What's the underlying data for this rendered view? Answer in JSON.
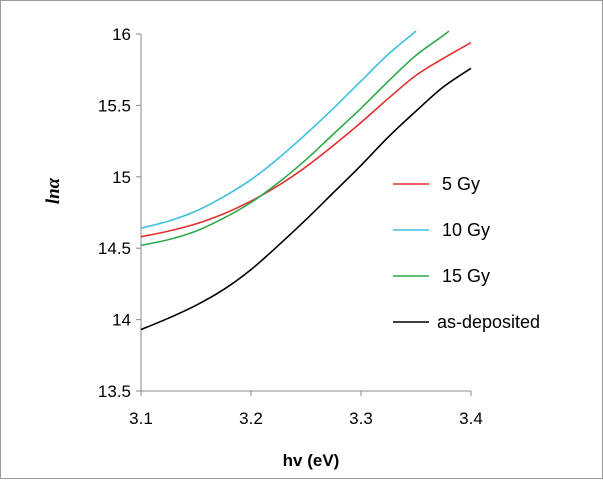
{
  "chart_data": {
    "type": "line",
    "title": "",
    "xlabel": "hv (eV)",
    "ylabel": "lnα",
    "xlim": [
      3.1,
      3.4
    ],
    "ylim": [
      13.5,
      16
    ],
    "x_ticks": [
      "3.1",
      "3.2",
      "3.3",
      "3.4"
    ],
    "y_ticks": [
      "13.5",
      "14",
      "14.5",
      "15",
      "15.5",
      "16"
    ],
    "grid": false,
    "legend_position": "right",
    "series": [
      {
        "name": " 5 Gy",
        "color": "#e03030",
        "x": [
          3.1,
          3.125,
          3.15,
          3.175,
          3.2,
          3.225,
          3.25,
          3.275,
          3.3,
          3.325,
          3.35,
          3.375,
          3.4
        ],
        "values": [
          14.58,
          14.62,
          14.67,
          14.74,
          14.83,
          14.94,
          15.07,
          15.22,
          15.38,
          15.55,
          15.71,
          15.83,
          15.94
        ]
      },
      {
        "name": " 10 Gy",
        "color": "#3ec0e0",
        "x": [
          3.1,
          3.125,
          3.15,
          3.175,
          3.2,
          3.225,
          3.25,
          3.275,
          3.3,
          3.325,
          3.35
        ],
        "values": [
          14.64,
          14.69,
          14.76,
          14.86,
          14.98,
          15.13,
          15.3,
          15.48,
          15.67,
          15.86,
          16.02
        ]
      },
      {
        "name": " 15 Gy",
        "color": "#2ea84a",
        "x": [
          3.1,
          3.125,
          3.15,
          3.175,
          3.2,
          3.225,
          3.25,
          3.275,
          3.3,
          3.325,
          3.35,
          3.375,
          3.38
        ],
        "values": [
          14.52,
          14.56,
          14.62,
          14.71,
          14.82,
          14.96,
          15.12,
          15.3,
          15.48,
          15.67,
          15.85,
          15.99,
          16.02
        ]
      },
      {
        "name": "as-deposited",
        "color": "#000000",
        "x": [
          3.1,
          3.125,
          3.15,
          3.175,
          3.2,
          3.225,
          3.25,
          3.275,
          3.3,
          3.325,
          3.35,
          3.375,
          3.4
        ],
        "values": [
          13.93,
          14.01,
          14.1,
          14.21,
          14.35,
          14.52,
          14.7,
          14.89,
          15.08,
          15.28,
          15.46,
          15.63,
          15.76
        ]
      }
    ]
  }
}
